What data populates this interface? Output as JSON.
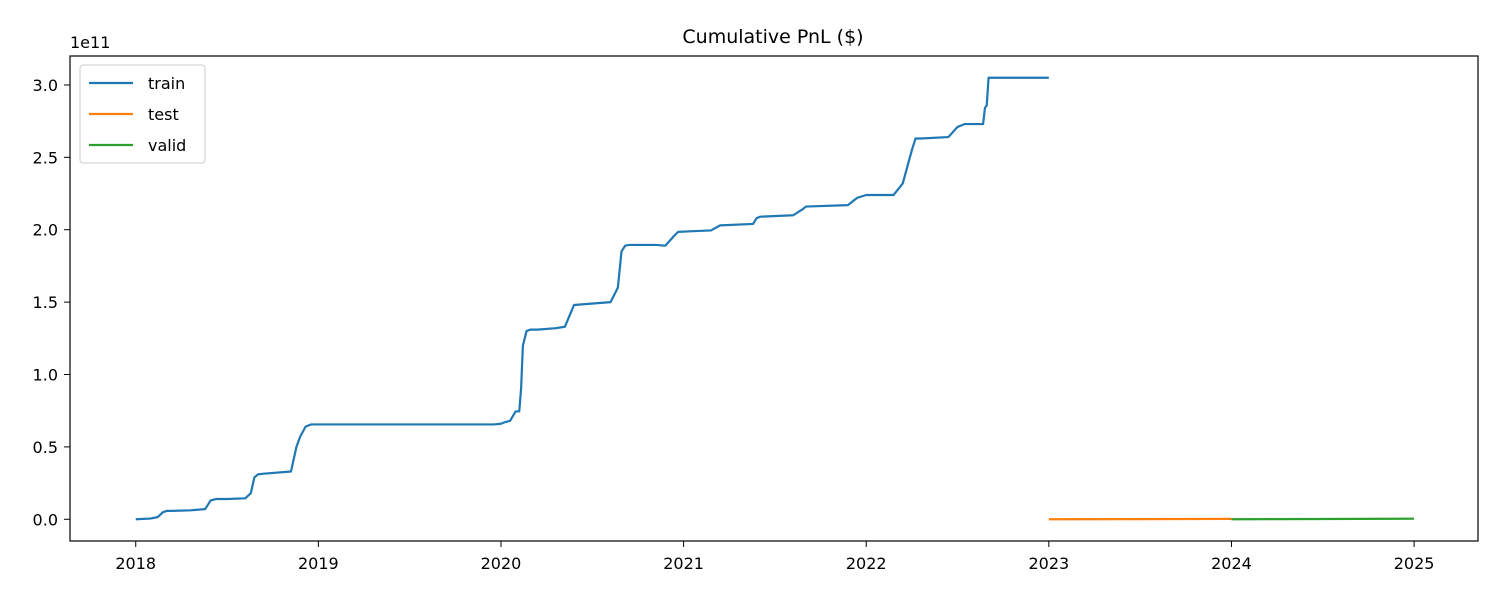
{
  "chart_data": {
    "type": "line",
    "title": "Cumulative PnL ($)",
    "xlabel": "",
    "ylabel": "",
    "y_offset_label": "1e11",
    "y_scale": 100000000000,
    "xlim": [
      2017.64,
      2025.35
    ],
    "ylim": [
      -0.15,
      3.2
    ],
    "x_ticks": [
      2018,
      2019,
      2020,
      2021,
      2022,
      2023,
      2024,
      2025
    ],
    "x_tick_labels": [
      "2018",
      "2019",
      "2020",
      "2021",
      "2022",
      "2023",
      "2024",
      "2025"
    ],
    "y_ticks": [
      0.0,
      0.5,
      1.0,
      1.5,
      2.0,
      2.5,
      3.0
    ],
    "y_tick_labels": [
      "0.0",
      "0.5",
      "1.0",
      "1.5",
      "2.0",
      "2.5",
      "3.0"
    ],
    "grid": false,
    "legend_position": "top-left",
    "series": [
      {
        "name": "train",
        "color": "#1f77b4",
        "x": [
          2018.0,
          2018.08,
          2018.12,
          2018.15,
          2018.17,
          2018.2,
          2018.3,
          2018.38,
          2018.41,
          2018.44,
          2018.5,
          2018.6,
          2018.63,
          2018.65,
          2018.67,
          2018.7,
          2018.85,
          2018.88,
          2018.9,
          2018.93,
          2018.96,
          2019.0,
          2019.5,
          2019.96,
          2020.0,
          2020.02,
          2020.05,
          2020.08,
          2020.1,
          2020.11,
          2020.12,
          2020.14,
          2020.16,
          2020.2,
          2020.3,
          2020.35,
          2020.38,
          2020.4,
          2020.6,
          2020.64,
          2020.66,
          2020.68,
          2020.7,
          2020.75,
          2020.85,
          2020.9,
          2020.95,
          2020.97,
          2021.05,
          2021.15,
          2021.2,
          2021.38,
          2021.4,
          2021.42,
          2021.6,
          2021.65,
          2021.67,
          2021.9,
          2021.95,
          2022.0,
          2022.15,
          2022.2,
          2022.25,
          2022.27,
          2022.3,
          2022.45,
          2022.5,
          2022.52,
          2022.54,
          2022.64,
          2022.65,
          2022.66,
          2022.67,
          2022.8,
          2023.0
        ],
        "y": [
          0.0,
          0.005,
          0.015,
          0.05,
          0.058,
          0.058,
          0.062,
          0.07,
          0.13,
          0.14,
          0.14,
          0.145,
          0.18,
          0.29,
          0.31,
          0.315,
          0.33,
          0.5,
          0.57,
          0.64,
          0.655,
          0.655,
          0.655,
          0.655,
          0.66,
          0.67,
          0.68,
          0.745,
          0.745,
          0.9,
          1.2,
          1.3,
          1.31,
          1.31,
          1.32,
          1.33,
          1.42,
          1.48,
          1.5,
          1.6,
          1.85,
          1.89,
          1.895,
          1.895,
          1.895,
          1.89,
          1.96,
          1.985,
          1.99,
          1.995,
          2.03,
          2.04,
          2.08,
          2.09,
          2.1,
          2.14,
          2.16,
          2.17,
          2.22,
          2.24,
          2.24,
          2.32,
          2.55,
          2.63,
          2.63,
          2.64,
          2.71,
          2.72,
          2.73,
          2.73,
          2.84,
          2.86,
          3.05,
          3.05,
          3.05
        ]
      },
      {
        "name": "test",
        "color": "#ff7f0e",
        "x": [
          2023.0,
          2023.5,
          2024.0
        ],
        "y": [
          0.0,
          0.001,
          0.003
        ]
      },
      {
        "name": "valid",
        "color": "#2ca02c",
        "x": [
          2024.0,
          2024.5,
          2025.0
        ],
        "y": [
          0.0,
          0.002,
          0.004
        ]
      }
    ]
  }
}
